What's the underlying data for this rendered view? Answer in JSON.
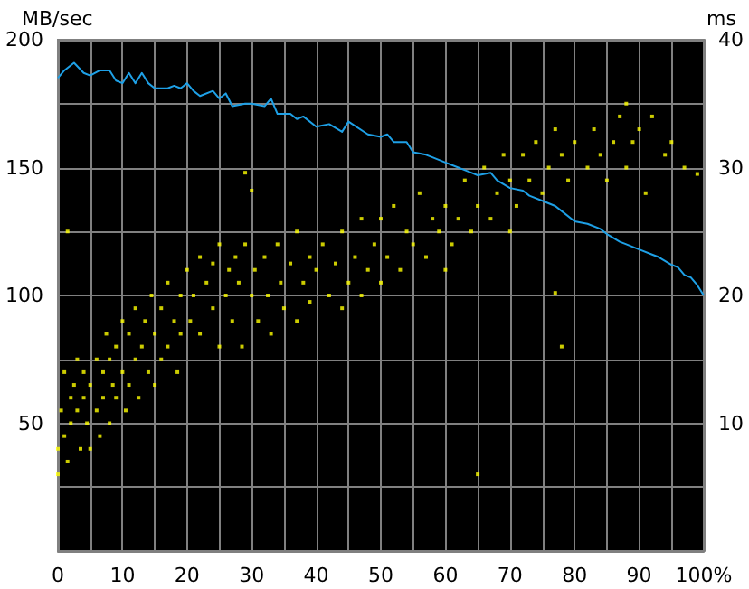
{
  "chart_data": {
    "type": "line",
    "ylabel": "MB/sec",
    "y2label": "ms",
    "grid": true,
    "xlim": [
      0,
      100
    ],
    "xticks": [
      0,
      {
        "value": 5,
        "label": null
      },
      10,
      {
        "value": 15,
        "label": null
      },
      20,
      {
        "value": 25,
        "label": null
      },
      30,
      {
        "value": 35,
        "label": null
      },
      40,
      {
        "value": 45,
        "label": null
      },
      50,
      {
        "value": 55,
        "label": null
      },
      60,
      {
        "value": 65,
        "label": null
      },
      70,
      {
        "value": 75,
        "label": null
      },
      80,
      {
        "value": 85,
        "label": null
      },
      90,
      {
        "value": 95,
        "label": null
      },
      {
        "value": 100,
        "label": "100%"
      }
    ],
    "ylim": [
      0,
      200
    ],
    "yticks": [
      {
        "value": 0,
        "label": null
      },
      {
        "value": 25,
        "label": null
      },
      50,
      {
        "value": 75,
        "label": null
      },
      100,
      {
        "value": 125,
        "label": null
      },
      150,
      {
        "value": 175,
        "label": null
      },
      200
    ],
    "y2lim": [
      0,
      40
    ],
    "y2ticks": [
      {
        "value": 0,
        "label": null
      },
      {
        "value": 5,
        "label": null
      },
      10,
      {
        "value": 15,
        "label": null
      },
      20,
      {
        "value": 25,
        "label": null
      },
      30,
      {
        "value": 35,
        "label": null
      },
      40
    ],
    "series": [
      {
        "type": "line",
        "color": "#1ea0e6",
        "marker": "none",
        "x": [
          0,
          1,
          2.5,
          4,
          5,
          6.5,
          8,
          9,
          10,
          11,
          12,
          13,
          14,
          15,
          17,
          18,
          19,
          20,
          21,
          22,
          24,
          25,
          26,
          27,
          29,
          30,
          32,
          33,
          34,
          36,
          37,
          38,
          40,
          42,
          44,
          45,
          48,
          50,
          51,
          52,
          54,
          55,
          57,
          58,
          60,
          62,
          64,
          65,
          67,
          68,
          70,
          72,
          73,
          75,
          77,
          78,
          80,
          82,
          84,
          85,
          87,
          88,
          90,
          92,
          93,
          95,
          96,
          97,
          98,
          99,
          100
        ],
        "values": [
          185,
          188,
          191,
          187,
          186,
          188,
          188,
          184,
          183,
          187,
          183,
          187,
          183,
          181,
          181,
          182,
          181,
          183,
          180,
          178,
          180,
          177,
          179,
          174,
          175,
          175,
          174,
          177,
          171,
          171,
          169,
          170,
          166,
          167,
          164,
          168,
          163,
          162,
          163,
          160,
          160,
          156,
          155,
          154,
          152,
          150,
          148,
          147,
          148,
          145,
          142,
          141,
          139,
          137,
          135,
          133,
          129,
          128,
          126,
          124,
          121,
          120,
          118,
          116,
          115,
          112,
          111,
          108,
          107,
          104,
          100
        ]
      },
      {
        "type": "scatter",
        "axis": "y2",
        "color": "#ffff00",
        "marker": "square",
        "x": [
          0,
          0,
          0.5,
          1,
          1,
          1.5,
          1.5,
          2,
          2,
          2.5,
          3,
          3,
          3.5,
          4,
          4,
          4.5,
          5,
          5,
          6,
          6,
          6.5,
          7,
          7,
          7.5,
          8,
          8,
          8.5,
          9,
          9,
          10,
          10,
          10.5,
          11,
          11,
          12,
          12,
          12.5,
          13,
          13.5,
          14,
          14.5,
          15,
          15,
          16,
          16,
          17,
          17,
          18,
          18.5,
          19,
          19,
          20,
          20.5,
          21,
          22,
          22,
          23,
          24,
          24,
          25,
          25,
          26,
          26.5,
          27,
          27.5,
          28,
          28.5,
          29,
          29,
          30,
          30,
          30.5,
          31,
          32,
          32.5,
          33,
          34,
          34.5,
          35,
          36,
          37,
          37,
          38,
          39,
          39,
          40,
          41,
          42,
          43,
          44,
          44,
          45,
          46,
          47,
          47,
          48,
          49,
          50,
          50,
          51,
          52,
          53,
          54,
          55,
          56,
          57,
          58,
          59,
          60,
          60,
          61,
          62,
          63,
          64,
          65,
          65,
          66,
          67,
          68,
          69,
          70,
          70,
          71,
          72,
          73,
          74,
          75,
          76,
          77,
          77,
          78,
          78,
          79,
          80,
          82,
          83,
          84,
          85,
          86,
          87,
          88,
          88,
          89,
          90,
          91,
          92,
          94,
          95,
          97,
          99
        ],
        "values": [
          6,
          8,
          11,
          14,
          9,
          7,
          25,
          12,
          10,
          13,
          15,
          11,
          8,
          14,
          12,
          10,
          13,
          8,
          15,
          11,
          9,
          14,
          12,
          17,
          15,
          10,
          13,
          16,
          12,
          14,
          18,
          11,
          17,
          13,
          19,
          15,
          12,
          16,
          18,
          14,
          20,
          17,
          13,
          19,
          15,
          21,
          16,
          18,
          14,
          20,
          17,
          22,
          18,
          20,
          23,
          17,
          21,
          19,
          22.5,
          24,
          16,
          20,
          22,
          18,
          23,
          21,
          16,
          24,
          29.6,
          20,
          28.2,
          22,
          18,
          23,
          20,
          17,
          24,
          21,
          19,
          22.5,
          25,
          18,
          21,
          23,
          19.5,
          22,
          24,
          20,
          22.5,
          25,
          19,
          21,
          23,
          26,
          20,
          22,
          24,
          21,
          26,
          23,
          27,
          22,
          25,
          24,
          28,
          23,
          26,
          25,
          27,
          22,
          24,
          26,
          29,
          25,
          27,
          6,
          30,
          26,
          28,
          31,
          29,
          25,
          27,
          31,
          29,
          32,
          28,
          30,
          33,
          20.2,
          16,
          31,
          29,
          32,
          30,
          33,
          31,
          29,
          32,
          34,
          30,
          35,
          32,
          33,
          28,
          34,
          31,
          32,
          30,
          29.5
        ]
      }
    ]
  }
}
